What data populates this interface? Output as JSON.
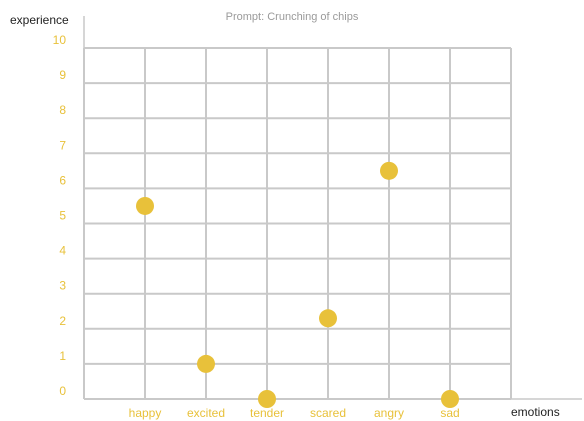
{
  "chart_data": {
    "type": "scatter",
    "title": "Prompt: Crunching of chips",
    "xlabel": "emotions",
    "ylabel": "experience",
    "categories": [
      "happy",
      "excited",
      "tender",
      "scared",
      "angry",
      "sad"
    ],
    "values": [
      5.5,
      1.0,
      0.0,
      2.3,
      6.5,
      0.0
    ],
    "ylim": [
      0,
      10
    ],
    "yticks": [
      "0",
      "1",
      "2",
      "3",
      "4",
      "5",
      "6",
      "7",
      "8",
      "9",
      "10"
    ],
    "grid": true,
    "colors": {
      "accent": "#E8C13A",
      "grid": "#c9c9c9",
      "title": "#9a9a9a",
      "axis_title": "#222222"
    }
  }
}
